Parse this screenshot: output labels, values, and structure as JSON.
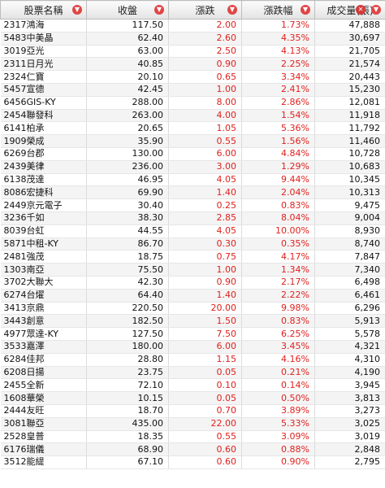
{
  "header": {
    "name": "股票名稱",
    "close": "收盤",
    "change": "漲跌",
    "change_pct": "漲跌幅",
    "volume": "成交量(張)"
  },
  "colors": {
    "up": "#e0211d"
  },
  "rows": [
    {
      "name": "2317鴻海",
      "close": "117.50",
      "change": "2.00",
      "pct": "1.73%",
      "volume": "47,888"
    },
    {
      "name": "5483中美晶",
      "close": "62.40",
      "change": "2.60",
      "pct": "4.35%",
      "volume": "30,697"
    },
    {
      "name": "3019亞光",
      "close": "63.00",
      "change": "2.50",
      "pct": "4.13%",
      "volume": "21,705"
    },
    {
      "name": "2311日月光",
      "close": "40.85",
      "change": "0.90",
      "pct": "2.25%",
      "volume": "21,574"
    },
    {
      "name": "2324仁寶",
      "close": "20.10",
      "change": "0.65",
      "pct": "3.34%",
      "volume": "20,443"
    },
    {
      "name": "5457宣德",
      "close": "42.45",
      "change": "1.00",
      "pct": "2.41%",
      "volume": "15,230"
    },
    {
      "name": "6456GIS-KY",
      "close": "288.00",
      "change": "8.00",
      "pct": "2.86%",
      "volume": "12,081"
    },
    {
      "name": "2454聯發科",
      "close": "263.00",
      "change": "4.00",
      "pct": "1.54%",
      "volume": "11,918"
    },
    {
      "name": "6141柏承",
      "close": "20.65",
      "change": "1.05",
      "pct": "5.36%",
      "volume": "11,792"
    },
    {
      "name": "1909榮成",
      "close": "35.90",
      "change": "0.55",
      "pct": "1.56%",
      "volume": "11,460"
    },
    {
      "name": "6269台郡",
      "close": "130.00",
      "change": "6.00",
      "pct": "4.84%",
      "volume": "10,728"
    },
    {
      "name": "2439美律",
      "close": "236.00",
      "change": "3.00",
      "pct": "1.29%",
      "volume": "10,683"
    },
    {
      "name": "6138茂達",
      "close": "46.95",
      "change": "4.05",
      "pct": "9.44%",
      "volume": "10,345"
    },
    {
      "name": "8086宏捷科",
      "close": "69.90",
      "change": "1.40",
      "pct": "2.04%",
      "volume": "10,313"
    },
    {
      "name": "2449京元電子",
      "close": "30.40",
      "change": "0.25",
      "pct": "0.83%",
      "volume": "9,475"
    },
    {
      "name": "3236千如",
      "close": "38.30",
      "change": "2.85",
      "pct": "8.04%",
      "volume": "9,004"
    },
    {
      "name": "8039台虹",
      "close": "44.55",
      "change": "4.05",
      "pct": "10.00%",
      "volume": "8,930"
    },
    {
      "name": "5871中租-KY",
      "close": "86.70",
      "change": "0.30",
      "pct": "0.35%",
      "volume": "8,740"
    },
    {
      "name": "2481強茂",
      "close": "18.75",
      "change": "0.75",
      "pct": "4.17%",
      "volume": "7,847"
    },
    {
      "name": "1303南亞",
      "close": "75.50",
      "change": "1.00",
      "pct": "1.34%",
      "volume": "7,340"
    },
    {
      "name": "3702大聯大",
      "close": "42.30",
      "change": "0.90",
      "pct": "2.17%",
      "volume": "6,498"
    },
    {
      "name": "6274台燿",
      "close": "64.40",
      "label_note": "",
      "change": "1.40",
      "pct": "2.22%",
      "volume": "6,461"
    },
    {
      "name": "3413京鼎",
      "close": "220.50",
      "change": "20.00",
      "pct": "9.98%",
      "volume": "6,296"
    },
    {
      "name": "3443創意",
      "close": "182.50",
      "change": "1.50",
      "pct": "0.83%",
      "volume": "5,913"
    },
    {
      "name": "4977眾達-KY",
      "close": "127.50",
      "change": "7.50",
      "pct": "6.25%",
      "volume": "5,578"
    },
    {
      "name": "3533嘉澤",
      "close": "180.00",
      "change": "6.00",
      "pct": "3.45%",
      "volume": "4,321"
    },
    {
      "name": "6284佳邦",
      "close": "28.80",
      "change": "1.15",
      "pct": "4.16%",
      "volume": "4,310"
    },
    {
      "name": "6208日揚",
      "close": "23.75",
      "change": "0.05",
      "pct": "0.21%",
      "volume": "4,190"
    },
    {
      "name": "2455全新",
      "close": "72.10",
      "change": "0.10",
      "pct": "0.14%",
      "volume": "3,945"
    },
    {
      "name": "1608華榮",
      "close": "10.15",
      "change": "0.05",
      "pct": "0.50%",
      "volume": "3,813"
    },
    {
      "name": "2444友旺",
      "close": "18.70",
      "change": "0.70",
      "pct": "3.89%",
      "volume": "3,273"
    },
    {
      "name": "3081聯亞",
      "close": "435.00",
      "change": "22.00",
      "pct": "5.33%",
      "volume": "3,025"
    },
    {
      "name": "2528皇普",
      "close": "18.35",
      "change": "0.55",
      "pct": "3.09%",
      "volume": "3,019"
    },
    {
      "name": "6176瑞儀",
      "close": "68.90",
      "change": "0.60",
      "pct": "0.88%",
      "volume": "2,848"
    },
    {
      "name": "3512能緹",
      "close": "67.10",
      "change": "0.60",
      "pct": "0.90%",
      "volume": "2,795"
    }
  ]
}
